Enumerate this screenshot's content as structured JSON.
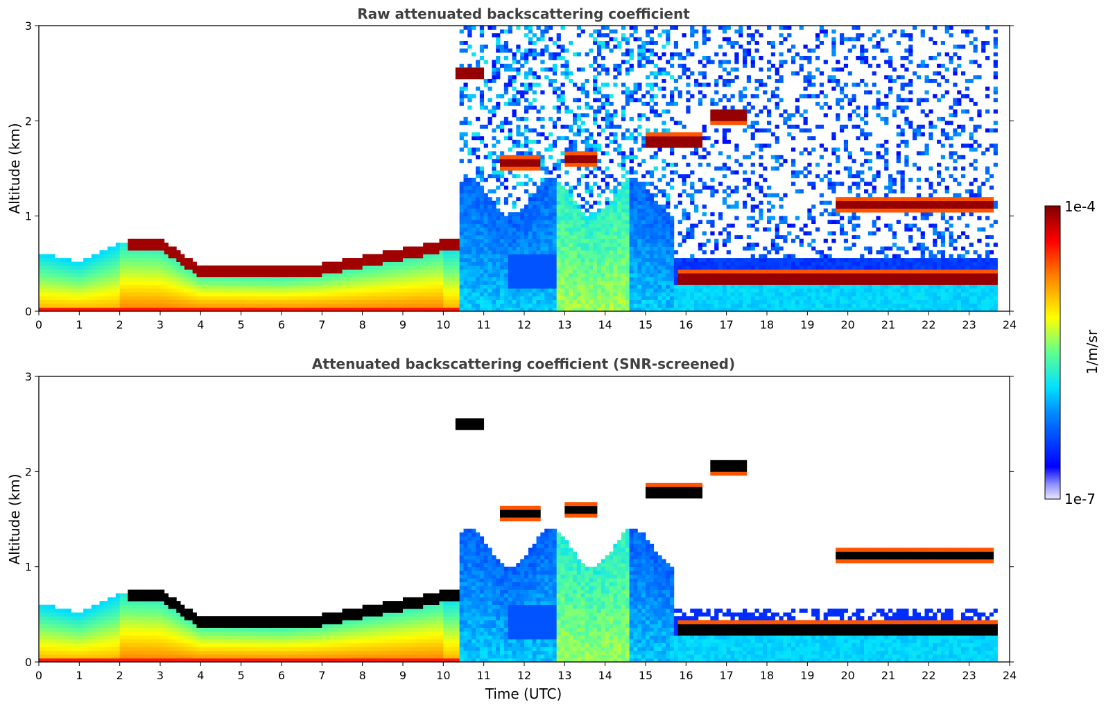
{
  "chart_data": [
    {
      "type": "heatmap",
      "title": "Raw attenuated backscattering coefficient",
      "xlabel": "",
      "ylabel": "Altitude (km)",
      "xlim": [
        0,
        24
      ],
      "ylim": [
        0,
        3
      ],
      "xticks": [
        "0",
        "1",
        "2",
        "3",
        "4",
        "5",
        "6",
        "7",
        "8",
        "9",
        "10",
        "11",
        "12",
        "13",
        "14",
        "15",
        "16",
        "17",
        "18",
        "19",
        "20",
        "21",
        "22",
        "23",
        "24"
      ],
      "yticks": [
        "0",
        "1",
        "2",
        "3"
      ],
      "screened": false,
      "layers": [
        {
          "name": "fog layer",
          "t_start": 0.0,
          "t_end": 10.4,
          "alt_top": [
            [
              0,
              0.62
            ],
            [
              1,
              0.52
            ],
            [
              2,
              0.72
            ],
            [
              3,
              0.7
            ],
            [
              4,
              0.42
            ],
            [
              6,
              0.4
            ],
            [
              7,
              0.44
            ],
            [
              8,
              0.52
            ],
            [
              9,
              0.6
            ],
            [
              10.4,
              0.72
            ]
          ]
        },
        {
          "name": "cloud 2.5 km",
          "t_start": 10.3,
          "t_end": 11.0,
          "alt": 2.5
        },
        {
          "name": "cloud 1.55 km",
          "t_start": 11.4,
          "t_end": 12.4,
          "alt": 1.55
        },
        {
          "name": "cloud 1.6 km",
          "t_start": 13.0,
          "t_end": 13.8,
          "alt": 1.6
        },
        {
          "name": "cloud 1.8 km",
          "t_start": 15.0,
          "t_end": 16.4,
          "alt": 1.78
        },
        {
          "name": "cloud 2.05 km",
          "t_start": 16.6,
          "t_end": 17.5,
          "alt": 2.05
        },
        {
          "name": "cloud 1.15 km",
          "t_start": 19.7,
          "t_end": 23.6,
          "alt": 1.12
        },
        {
          "name": "low cloud 0.35 km",
          "t_start": 15.8,
          "t_end": 23.7,
          "alt": 0.35
        }
      ]
    },
    {
      "type": "heatmap",
      "title": "Attenuated backscattering coefficient (SNR-screened)",
      "xlabel": "Time (UTC)",
      "ylabel": "Altitude (km)",
      "xlim": [
        0,
        24
      ],
      "ylim": [
        0,
        3
      ],
      "xticks": [
        "0",
        "1",
        "2",
        "3",
        "4",
        "5",
        "6",
        "7",
        "8",
        "9",
        "10",
        "11",
        "12",
        "13",
        "14",
        "15",
        "16",
        "17",
        "18",
        "19",
        "20",
        "21",
        "22",
        "23",
        "24"
      ],
      "yticks": [
        "0",
        "1",
        "2",
        "3"
      ],
      "screened": true,
      "saturated_color": "#000000"
    }
  ],
  "colorbar": {
    "label": "1/m/sr",
    "max_label": "1e-4",
    "min_label": "1e-7",
    "colormap": "jet"
  }
}
